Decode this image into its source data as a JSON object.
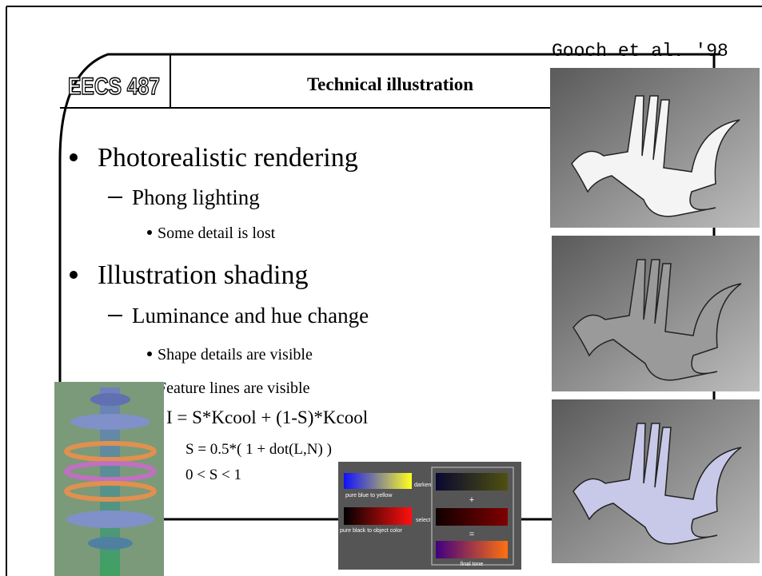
{
  "header": {
    "course": "EECS 487",
    "title": "Technical illustration",
    "credit": "Gooch et al. '98"
  },
  "bullets": [
    {
      "text": "Photorealistic rendering",
      "level": 1
    },
    {
      "text": "Phong lighting",
      "level": 2
    },
    {
      "text": "Some detail is lost",
      "level": 3
    },
    {
      "text": "Illustration shading",
      "level": 1
    },
    {
      "text": "Luminance and hue change",
      "level": 2
    },
    {
      "text": "Shape details are visible",
      "level": 3
    },
    {
      "text": "Feature lines are visible",
      "level": 3
    }
  ],
  "formulas": [
    "I = S*Kcool + (1-S)*Kcool",
    "S = 0.5*( 1 + dot(L,N) )",
    "0 < S < 1"
  ],
  "diagram": {
    "darken": "darken",
    "blue_yellow": "pure blue to yellow",
    "plus": "+",
    "select": "select",
    "black_object": "pure black to object color",
    "equals": "=",
    "final": "final tone"
  }
}
